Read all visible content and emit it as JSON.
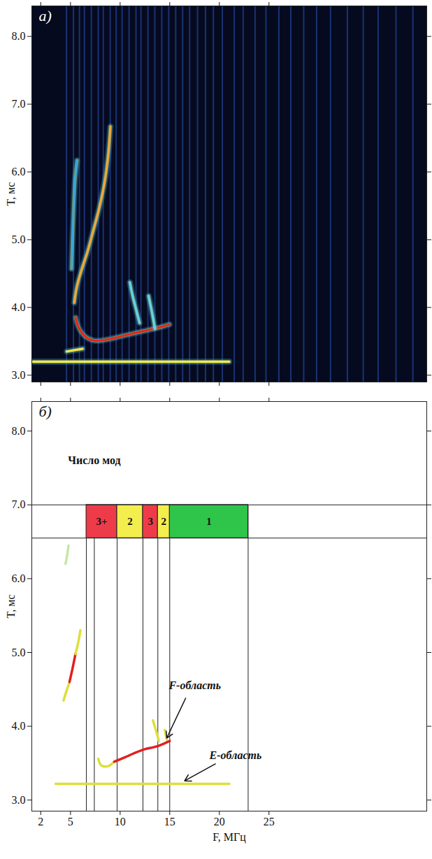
{
  "chart_data": [
    {
      "type": "line",
      "title": "а)",
      "ylabel": "T, мс",
      "xlim": [
        1.1,
        40.9
      ],
      "xticks": [
        2,
        5,
        10,
        15,
        20,
        25
      ],
      "ylim": [
        2.9,
        8.45
      ],
      "yticks": [
        3,
        4,
        5,
        6,
        7,
        8
      ],
      "tick_labels": "y",
      "noise_frequencies": [
        4.6,
        5.3,
        5.9,
        6.4,
        7.1,
        7.8,
        8.3,
        9.0,
        9.6,
        10.2,
        10.9,
        11.6,
        12.1,
        12.8,
        13.5,
        14.2,
        14.9,
        15.6,
        16.3,
        17.0,
        17.8,
        18.6,
        19.4,
        20.3,
        21.5,
        22.4,
        23.6,
        24.7,
        26.0,
        27.2,
        28.5,
        29.8,
        31.2,
        32.9,
        34.5,
        36.0,
        37.8,
        39.5
      ],
      "traces": [
        {
          "color": "#f3e64a",
          "points": [
            [
              1.2,
              3.2
            ],
            [
              21.0,
              3.2
            ]
          ]
        },
        {
          "color": "#f3e64a",
          "points": [
            [
              4.62,
              3.35
            ],
            [
              6.22,
              3.39
            ]
          ]
        },
        {
          "color": "#e5241c",
          "points": [
            [
              5.52,
              3.85
            ],
            [
              5.87,
              3.69
            ],
            [
              6.5,
              3.57
            ],
            [
              7.41,
              3.51
            ],
            [
              8.81,
              3.53
            ],
            [
              10.56,
              3.59
            ],
            [
              12.31,
              3.65
            ],
            [
              14.06,
              3.71
            ],
            [
              14.97,
              3.75
            ]
          ]
        },
        {
          "color": "#f0a838",
          "points": [
            [
              5.38,
              4.07
            ],
            [
              5.66,
              4.32
            ],
            [
              6.15,
              4.57
            ],
            [
              6.71,
              4.82
            ],
            [
              7.27,
              5.12
            ],
            [
              7.9,
              5.47
            ],
            [
              8.46,
              5.87
            ],
            [
              8.81,
              6.27
            ],
            [
              9.02,
              6.67
            ]
          ]
        },
        {
          "color": "#3aa6d8",
          "points": [
            [
              5.1,
              4.57
            ],
            [
              5.24,
              5.17
            ],
            [
              5.45,
              5.87
            ],
            [
              5.66,
              6.17
            ]
          ]
        },
        {
          "color": "#5fd6e8",
          "points": [
            [
              11.96,
              3.77
            ],
            [
              11.61,
              3.97
            ],
            [
              11.26,
              4.17
            ],
            [
              10.98,
              4.37
            ]
          ]
        },
        {
          "color": "#5fd6e8",
          "points": [
            [
              13.5,
              3.69
            ],
            [
              13.22,
              3.92
            ],
            [
              12.87,
              4.17
            ]
          ]
        }
      ]
    },
    {
      "type": "line",
      "title": "б)",
      "xlabel": "F, МГц",
      "ylabel": "T, мс",
      "xlim": [
        1.1,
        40.9
      ],
      "xticks": [
        2,
        5,
        10,
        15,
        20,
        25
      ],
      "ylim": [
        2.85,
        8.4
      ],
      "yticks": [
        3,
        4,
        5,
        6,
        7,
        8
      ],
      "modes_band": [
        6.55,
        7.0
      ],
      "boundaries": [
        6.6,
        7.4,
        9.7,
        12.3,
        13.8,
        15.0,
        22.9
      ],
      "modes": [
        {
          "label": "3+",
          "start": 6.6,
          "end": 9.7,
          "color": "#ee3b4a"
        },
        {
          "label": "2",
          "start": 9.7,
          "end": 12.3,
          "color": "#f3ee4d"
        },
        {
          "label": "3",
          "start": 12.3,
          "end": 13.8,
          "color": "#ee3b4a"
        },
        {
          "label": "2",
          "start": 13.8,
          "end": 15.0,
          "color": "#f3ee4d"
        },
        {
          "label": "1",
          "start": 15.0,
          "end": 22.9,
          "color": "#2fc54a"
        }
      ],
      "traces": [
        {
          "color": "#dede3c",
          "points": [
            [
              3.5,
              3.22
            ],
            [
              21.0,
              3.22
            ]
          ]
        },
        {
          "color": "#dede3c",
          "points": [
            [
              7.8,
              3.56
            ],
            [
              8.1,
              3.47
            ],
            [
              8.8,
              3.46
            ],
            [
              9.4,
              3.52
            ]
          ]
        },
        {
          "color": "#e02020",
          "points": [
            [
              9.4,
              3.52
            ],
            [
              10.5,
              3.58
            ],
            [
              11.5,
              3.64
            ],
            [
              12.5,
              3.69
            ],
            [
              13.5,
              3.72
            ],
            [
              14.5,
              3.77
            ],
            [
              15.0,
              3.8
            ]
          ]
        },
        {
          "color": "#dede3c",
          "points": [
            [
              13.9,
              3.8
            ],
            [
              13.6,
              3.95
            ],
            [
              13.3,
              4.08
            ]
          ]
        },
        {
          "color": "#dede3c",
          "points": [
            [
              14.7,
              3.82
            ],
            [
              14.5,
              3.95
            ]
          ]
        },
        {
          "color": "#dede3c",
          "points": [
            [
              4.3,
              4.35
            ],
            [
              4.6,
              4.48
            ],
            [
              4.9,
              4.6
            ]
          ]
        },
        {
          "color": "#e02020",
          "points": [
            [
              4.9,
              4.6
            ],
            [
              5.2,
              4.78
            ],
            [
              5.5,
              4.98
            ]
          ]
        },
        {
          "color": "#dede3c",
          "points": [
            [
              5.5,
              4.98
            ],
            [
              5.8,
              5.15
            ],
            [
              6.0,
              5.3
            ]
          ]
        },
        {
          "color": "#c7e6a8",
          "points": [
            [
              4.5,
              6.2
            ],
            [
              4.7,
              6.35
            ],
            [
              4.8,
              6.45
            ]
          ]
        }
      ],
      "annotations": [
        {
          "text": "Число мод",
          "x": 7.4,
          "y": 7.6
        },
        {
          "text": "F-область",
          "x": 14.9,
          "y": 4.55,
          "arrow_from": [
            16.6,
            4.38
          ],
          "arrow_to": [
            14.7,
            3.84
          ]
        },
        {
          "text": "E-область",
          "x": 19.0,
          "y": 3.6,
          "arrow_from": [
            19.6,
            3.49
          ],
          "arrow_to": [
            16.5,
            3.26
          ]
        }
      ]
    }
  ]
}
